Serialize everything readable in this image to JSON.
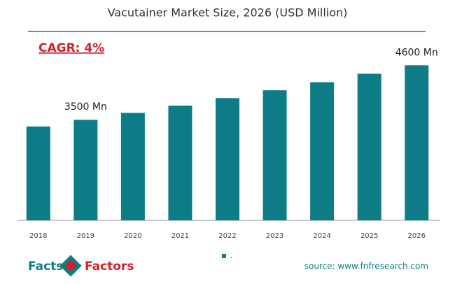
{
  "chart_data": {
    "type": "bar",
    "title": "Vacutainer Market Size, 2026 (USD Million)",
    "annotation": "CAGR: 4%",
    "categories": [
      "2018",
      "2019",
      "2020",
      "2021",
      "2022",
      "2023",
      "2024",
      "2025",
      "2026"
    ],
    "series": [
      {
        "name": ".",
        "color": "#0e7c86",
        "values": [
          3365,
          3500,
          3640,
          3786,
          3937,
          4095,
          4259,
          4429,
          4600
        ],
        "value_labels": [
          null,
          "3500 Mn",
          null,
          null,
          null,
          null,
          null,
          null,
          "4600 Mn"
        ]
      }
    ],
    "ylim": [
      1470,
      5000
    ],
    "source": "source: www.fnfresearch.com",
    "brand": [
      "Facts",
      "Factors"
    ]
  }
}
